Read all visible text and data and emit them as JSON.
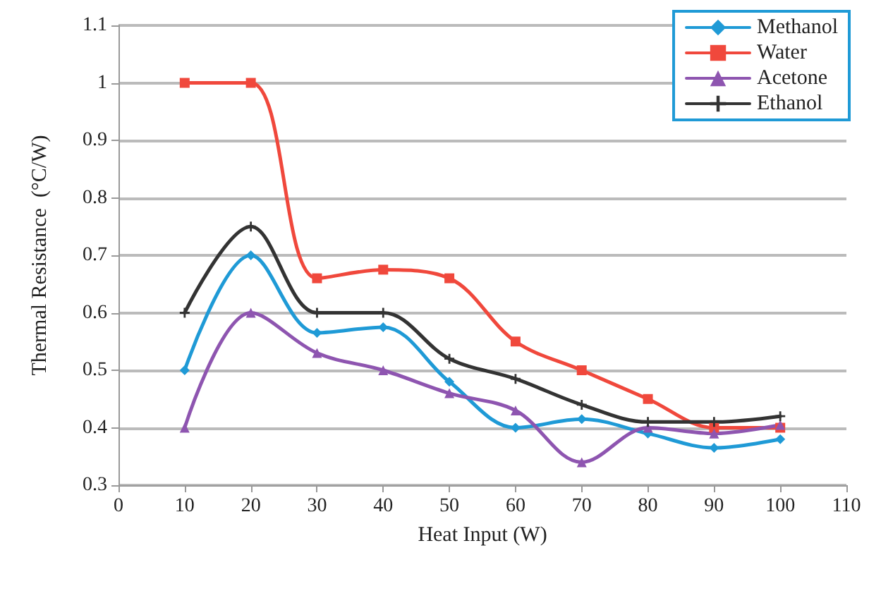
{
  "chart_data": {
    "type": "line",
    "xlabel": "Heat Input (W)",
    "ylabel": "Thermal Resistance  (°C/W)",
    "x": [
      10,
      20,
      30,
      40,
      50,
      60,
      70,
      80,
      90,
      100
    ],
    "series": [
      {
        "name": "Methanol",
        "color": "#1f9ad6",
        "marker": "diamond",
        "values": [
          0.5,
          0.7,
          0.565,
          0.575,
          0.48,
          0.4,
          0.415,
          0.39,
          0.365,
          0.38
        ]
      },
      {
        "name": "Water",
        "color": "#f0483c",
        "marker": "square",
        "values": [
          1.0,
          1.0,
          0.66,
          0.675,
          0.66,
          0.55,
          0.5,
          0.45,
          0.4,
          0.4
        ]
      },
      {
        "name": "Acetone",
        "color": "#8e55b0",
        "marker": "triangle",
        "values": [
          0.4,
          0.6,
          0.53,
          0.5,
          0.46,
          0.43,
          0.34,
          0.4,
          0.39,
          0.405
        ]
      },
      {
        "name": "Ethanol",
        "color": "#333333",
        "marker": "cross",
        "values": [
          0.6,
          0.75,
          0.6,
          0.6,
          0.52,
          0.485,
          0.44,
          0.41,
          0.41,
          0.42
        ]
      }
    ],
    "xlim": [
      0,
      110
    ],
    "xticks": [
      0,
      10,
      20,
      30,
      40,
      50,
      60,
      70,
      80,
      90,
      100,
      110
    ],
    "ylim": [
      0.3,
      1.1
    ],
    "yticks": [
      0.3,
      0.4,
      0.5,
      0.6,
      0.7,
      0.8,
      0.9,
      1,
      1.1
    ],
    "grid": "y",
    "legend": "top right",
    "line_style": "solid"
  }
}
